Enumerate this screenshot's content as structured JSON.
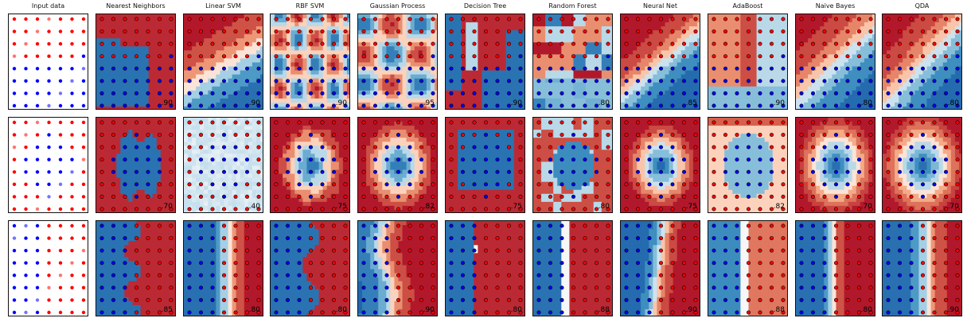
{
  "figure_title": "",
  "colors": {
    "class0_red": "#ff0000",
    "class1_blue": "#0000ff",
    "map_red": "#b2182b",
    "map_blue": "#2166ac"
  },
  "chart_data": {
    "type": "heatmap",
    "xlim": [
      0,
      1
    ],
    "ylim": [
      0,
      1
    ],
    "grid": false,
    "classifiers": [
      "Input data",
      "Nearest Neighbors",
      "Linear SVM",
      "RBF SVM",
      "Gaussian Process",
      "Decision Tree",
      "Random Forest",
      "Neural Net",
      "AdaBoost",
      "Naive Bayes",
      "QDA"
    ],
    "datasets": [
      {
        "name": "",
        "scores": [
          "",
          ".90",
          ".90",
          ".90",
          ".95",
          ".90",
          ".80",
          ".85",
          ".90",
          ".80",
          ".80"
        ]
      },
      {
        "name": "",
        "scores": [
          "",
          ".70",
          ".40",
          ".75",
          ".82",
          ".75",
          ".80",
          ".75",
          ".82",
          ".70",
          ".70"
        ]
      },
      {
        "name": "",
        "scores": [
          "",
          ".85",
          ".80",
          ".80",
          ".90",
          ".80",
          ".88",
          ".90",
          ".88",
          ".80",
          ".90"
        ]
      }
    ]
  }
}
